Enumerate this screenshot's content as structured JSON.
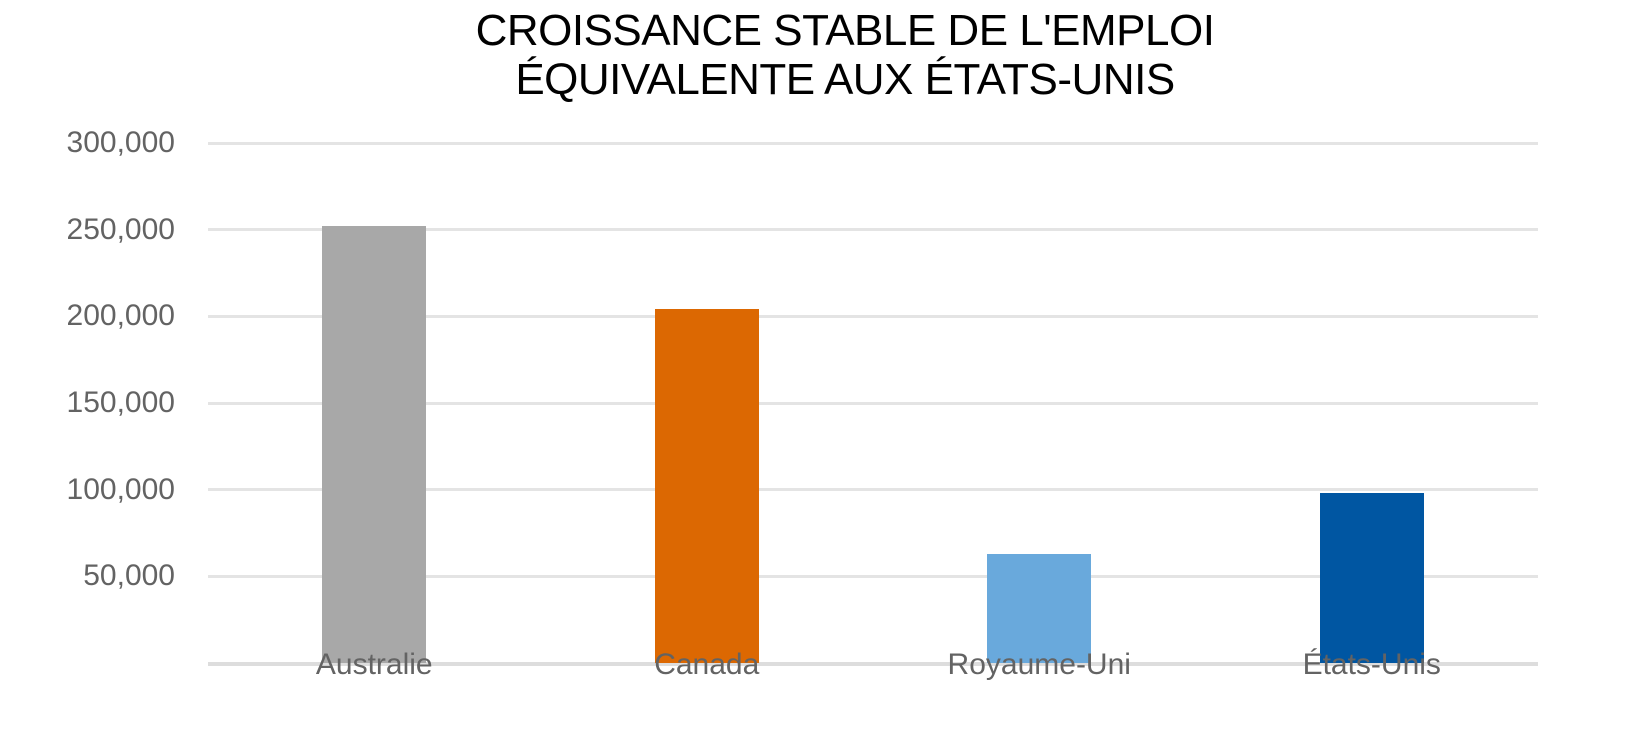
{
  "chart_data": {
    "type": "bar",
    "title": "CROISSANCE STABLE DE L'EMPLOI ÉQUIVALENTE AUX ÉTATS-UNIS",
    "title_lines": [
      "CROISSANCE STABLE DE L'EMPLOI",
      "ÉQUIVALENTE AUX ÉTATS-UNIS"
    ],
    "categories": [
      "Australie",
      "Canada",
      "Royaume-Uni",
      "États-Unis"
    ],
    "values": [
      252000,
      204000,
      63000,
      98000
    ],
    "bar_colors": [
      "#A8A8A8",
      "#DC6802",
      "#69A9DC",
      "#0056A2"
    ],
    "xlabel": "",
    "ylabel": "",
    "ylim": [
      0,
      300000
    ],
    "ytick_step": 50000,
    "yticks": [
      {
        "value": 50000,
        "label": "50,000"
      },
      {
        "value": 100000,
        "label": "100,000"
      },
      {
        "value": 150000,
        "label": "150,000"
      },
      {
        "value": 200000,
        "label": "200,000"
      },
      {
        "value": 250000,
        "label": "250,000"
      },
      {
        "value": 300000,
        "label": "300,000"
      }
    ],
    "grid": true,
    "legend": "none",
    "styles": {
      "title_color": "#000000",
      "axis_label_color": "#636363",
      "gridline_color": "#E4E4E4",
      "baseline_color": "#DDDDDD",
      "background": "#FFFFFF"
    }
  }
}
